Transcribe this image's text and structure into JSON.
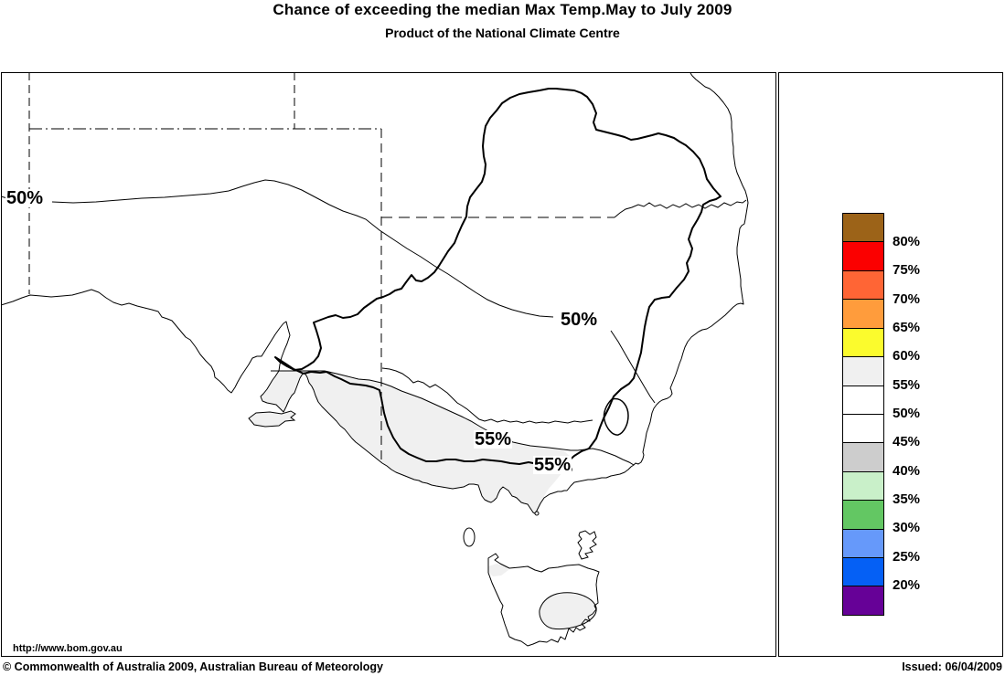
{
  "header": {
    "title": "Chance of exceeding the median Max Temp.May to July 2009",
    "subtitle": "Product of the National Climate Centre"
  },
  "map": {
    "url_label": "http://www.bom.gov.au",
    "contour_labels": [
      {
        "text": "50%"
      },
      {
        "text": "50%"
      },
      {
        "text": "55%"
      },
      {
        "text": "55%"
      }
    ]
  },
  "colors": {
    "shade_55_60": "#F0F0F0",
    "land": "#FFFFFF",
    "line": "#000000"
  },
  "legend": {
    "colors": [
      "#9C6318",
      "#FB0000",
      "#FF6535",
      "#FF9C3C",
      "#FBFB2D",
      "#F0F0F0",
      "#FFFFFF",
      "#FFFFFF",
      "#CDCDCD",
      "#C9F0C9",
      "#63C763",
      "#6699FA",
      "#0560F5",
      "#660197"
    ],
    "labels": [
      "80%",
      "75%",
      "70%",
      "65%",
      "60%",
      "55%",
      "50%",
      "45%",
      "40%",
      "35%",
      "30%",
      "25%",
      "20%"
    ]
  },
  "footer": {
    "copyright": "© Commonwealth of Australia 2009, Australian Bureau of Meteorology",
    "issued": "Issued: 06/04/2009"
  }
}
